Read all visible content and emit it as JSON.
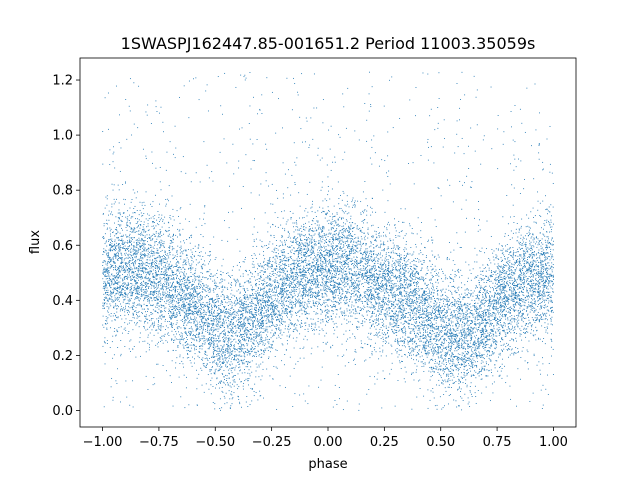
{
  "chart_data": {
    "type": "scatter",
    "title": "1SWASPJ162447.85-001651.2 Period 11003.35059s",
    "xlabel": "phase",
    "ylabel": "flux",
    "xlim": [
      -1.1,
      1.1
    ],
    "ylim": [
      -0.06,
      1.28
    ],
    "xticks": [
      -1.0,
      -0.75,
      -0.5,
      -0.25,
      0.0,
      0.25,
      0.5,
      0.75,
      1.0
    ],
    "xtick_labels": [
      "−1.00",
      "−0.75",
      "−0.50",
      "−0.25",
      "0.00",
      "0.25",
      "0.50",
      "0.75",
      "1.00"
    ],
    "yticks": [
      0.0,
      0.2,
      0.4,
      0.6,
      0.8,
      1.0,
      1.2
    ],
    "ytick_labels": [
      "0.0",
      "0.2",
      "0.4",
      "0.6",
      "0.8",
      "1.0",
      "1.2"
    ],
    "grid": false,
    "point_color": "#1f77b4",
    "series": [
      {
        "x": [
          -1.0,
          -0.9,
          -0.8,
          -0.7,
          -0.6,
          -0.5,
          -0.45,
          -0.4,
          -0.3,
          -0.2,
          -0.1,
          0.0,
          0.05,
          0.1,
          0.2,
          0.3,
          0.4,
          0.5,
          0.55,
          0.6,
          0.7,
          0.8,
          0.9,
          1.0
        ],
        "y": [
          0.48,
          0.52,
          0.5,
          0.45,
          0.38,
          0.3,
          0.27,
          0.28,
          0.36,
          0.45,
          0.5,
          0.52,
          0.53,
          0.52,
          0.47,
          0.42,
          0.36,
          0.3,
          0.28,
          0.27,
          0.33,
          0.42,
          0.48,
          0.5
        ]
      }
    ]
  }
}
